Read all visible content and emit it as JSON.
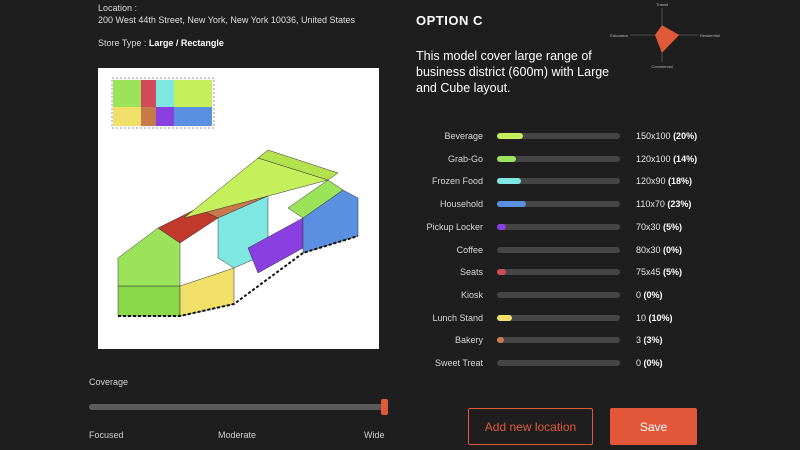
{
  "location": {
    "label": "Location :",
    "address": "200 West 44th Street, New York, New York 10036, United States"
  },
  "store_type": {
    "label": "Store Type :",
    "value": "Large / Rectangle"
  },
  "coverage": {
    "label": "Coverage",
    "ticks": [
      "Focused",
      "Moderate",
      "Wide"
    ],
    "value": 1.0
  },
  "option": {
    "title": "OPTION C",
    "description": "This model cover large range of business district (600m) with Large and Cube layout."
  },
  "radar": {
    "axes": [
      "Transit",
      "Residential",
      "Commercial",
      "Education"
    ],
    "values": [
      0.35,
      0.5,
      0.65,
      0.2
    ],
    "color": "#e05a3a"
  },
  "categories": [
    {
      "name": "Beverage",
      "size": "150x100",
      "pct": "(20%)",
      "fill": 0.2,
      "color": "#c6ef5c"
    },
    {
      "name": "Grab-Go",
      "size": "120x100",
      "pct": "(14%)",
      "fill": 0.14,
      "color": "#9be35a"
    },
    {
      "name": "Frozen Food",
      "size": "120x90",
      "pct": "(18%)",
      "fill": 0.18,
      "color": "#7fe7e2"
    },
    {
      "name": "Household",
      "size": "110x70",
      "pct": "(23%)",
      "fill": 0.23,
      "color": "#5b8fe0"
    },
    {
      "name": "Pickup Locker",
      "size": "70x30",
      "pct": "(5%)",
      "fill": 0.05,
      "color": "#8a3fe0"
    },
    {
      "name": "Coffee",
      "size": "80x30",
      "pct": "(0%)",
      "fill": 0,
      "color": "#c0392b"
    },
    {
      "name": "Seats",
      "size": "75x45",
      "pct": "(5%)",
      "fill": 0.05,
      "color": "#d1495b"
    },
    {
      "name": "Kiosk",
      "size": "0",
      "pct": "(0%)",
      "fill": 0,
      "color": "#888888"
    },
    {
      "name": "Lunch Stand",
      "size": "10",
      "pct": "(10%)",
      "fill": 0.1,
      "color": "#f0e06a"
    },
    {
      "name": "Bakery",
      "size": "3",
      "pct": "(3%)",
      "fill": 0.03,
      "color": "#c8794a"
    },
    {
      "name": "Sweet Treat",
      "size": "0",
      "pct": "(0%)",
      "fill": 0,
      "color": "#cccccc"
    }
  ],
  "buttons": {
    "add_location": "Add new location",
    "save": "Save"
  },
  "colors": {
    "accent": "#e05a3a",
    "background": "#1e1e1e"
  }
}
